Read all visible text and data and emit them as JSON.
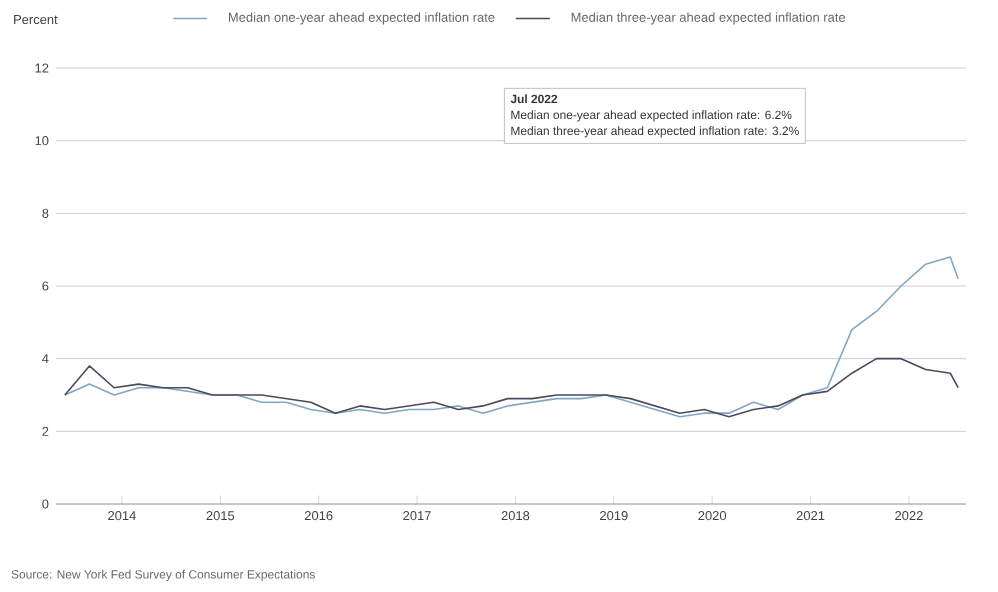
{
  "chart_data": {
    "type": "line",
    "ylabel": "Percent",
    "legend": "top",
    "grid": "y",
    "xlim": [
      "2013-05",
      "2022-08"
    ],
    "ylim": [
      0,
      12
    ],
    "xticks": [
      "2014",
      "2015",
      "2016",
      "2017",
      "2018",
      "2019",
      "2020",
      "2021",
      "2022"
    ],
    "yticks": [
      0,
      2,
      4,
      6,
      8,
      10,
      12
    ],
    "annotations": [
      "Jul 2022",
      "Median one-year ahead expected inflation rate: 6.2%",
      "Median three-year ahead expected inflation rate: 3.2%",
      "Source: New York Fed Survey of Consumer Expectations"
    ],
    "x": [
      "2013-06",
      "2013-09",
      "2013-12",
      "2014-03",
      "2014-06",
      "2014-09",
      "2014-12",
      "2015-03",
      "2015-06",
      "2015-09",
      "2015-12",
      "2016-03",
      "2016-06",
      "2016-09",
      "2016-12",
      "2017-03",
      "2017-06",
      "2017-09",
      "2017-12",
      "2018-03",
      "2018-06",
      "2018-09",
      "2018-12",
      "2019-03",
      "2019-06",
      "2019-09",
      "2019-12",
      "2020-03",
      "2020-06",
      "2020-09",
      "2020-12",
      "2021-03",
      "2021-06",
      "2021-09",
      "2021-12",
      "2022-03",
      "2022-06",
      "2022-07"
    ],
    "series": [
      {
        "name": "Median one-year ahead expected inflation rate",
        "color": "#7fa7c4",
        "values": [
          3.0,
          3.3,
          3.0,
          3.2,
          3.2,
          3.1,
          3.0,
          3.0,
          2.8,
          2.8,
          2.6,
          2.5,
          2.6,
          2.5,
          2.6,
          2.6,
          2.7,
          2.5,
          2.7,
          2.8,
          2.9,
          2.9,
          3.0,
          2.8,
          2.6,
          2.4,
          2.5,
          2.5,
          2.8,
          2.6,
          3.0,
          3.2,
          4.8,
          5.3,
          6.0,
          6.6,
          6.8,
          6.2
        ]
      },
      {
        "name": "Median three-year ahead expected inflation rate",
        "color": "#4a4a5e",
        "values": [
          3.0,
          3.8,
          3.2,
          3.3,
          3.2,
          3.2,
          3.0,
          3.0,
          3.0,
          2.9,
          2.8,
          2.5,
          2.7,
          2.6,
          2.7,
          2.8,
          2.6,
          2.7,
          2.9,
          2.9,
          3.0,
          3.0,
          3.0,
          2.9,
          2.7,
          2.5,
          2.6,
          2.4,
          2.6,
          2.7,
          3.0,
          3.1,
          3.6,
          4.0,
          4.0,
          3.7,
          3.6,
          3.2
        ]
      }
    ]
  }
}
